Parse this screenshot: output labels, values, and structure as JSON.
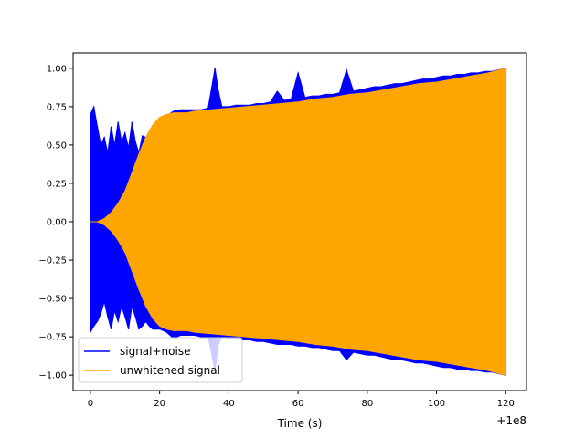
{
  "chart_data": {
    "type": "line",
    "title": "",
    "xlabel": "Time (s)",
    "ylabel": "",
    "x_offset_label": "+1e8",
    "xlim": [
      -5,
      126
    ],
    "ylim": [
      -1.1,
      1.1
    ],
    "x_ticks": [
      0,
      20,
      40,
      60,
      80,
      100,
      120
    ],
    "x_tick_labels": [
      "0",
      "20",
      "40",
      "60",
      "80",
      "100",
      "120"
    ],
    "y_ticks": [
      -1.0,
      -0.75,
      -0.5,
      -0.25,
      0.0,
      0.25,
      0.5,
      0.75,
      1.0
    ],
    "y_tick_labels": [
      "−1.00",
      "−0.75",
      "−0.50",
      "−0.25",
      "0.00",
      "0.25",
      "0.50",
      "0.75",
      "1.00"
    ],
    "grid": false,
    "legend_position": "lower-left",
    "series": [
      {
        "name": "signal+noise",
        "color": "#0000ff",
        "x": [
          0,
          1,
          2,
          3,
          4,
          5,
          6,
          7,
          8,
          9,
          10,
          11,
          12,
          13,
          14,
          15,
          16,
          17,
          18,
          20,
          22,
          24,
          26,
          28,
          30,
          32,
          34,
          36,
          37,
          38,
          40,
          42,
          44,
          46,
          48,
          50,
          52,
          54,
          56,
          58,
          60,
          62,
          64,
          66,
          68,
          70,
          72,
          74,
          76,
          78,
          80,
          82,
          84,
          86,
          88,
          90,
          92,
          94,
          96,
          98,
          100,
          102,
          104,
          106,
          108,
          110,
          112,
          114,
          116,
          118,
          120
        ],
        "y_upper": [
          0.7,
          0.75,
          0.62,
          0.5,
          0.55,
          0.45,
          0.62,
          0.5,
          0.65,
          0.52,
          0.58,
          0.48,
          0.65,
          0.52,
          0.45,
          0.56,
          0.55,
          0.53,
          0.6,
          0.66,
          0.69,
          0.72,
          0.73,
          0.73,
          0.73,
          0.73,
          0.74,
          1.0,
          0.85,
          0.75,
          0.75,
          0.76,
          0.76,
          0.76,
          0.77,
          0.77,
          0.78,
          0.85,
          0.79,
          0.8,
          0.97,
          0.81,
          0.82,
          0.82,
          0.83,
          0.83,
          0.84,
          0.99,
          0.85,
          0.86,
          0.87,
          0.88,
          0.88,
          0.89,
          0.9,
          0.9,
          0.91,
          0.92,
          0.93,
          0.93,
          0.94,
          0.95,
          0.95,
          0.96,
          0.96,
          0.97,
          0.97,
          0.98,
          0.98,
          0.99,
          1.0
        ],
        "y_lower": [
          -0.72,
          -0.68,
          -0.65,
          -0.6,
          -0.52,
          -0.62,
          -0.7,
          -0.58,
          -0.65,
          -0.55,
          -0.62,
          -0.7,
          -0.55,
          -0.62,
          -0.7,
          -0.68,
          -0.65,
          -0.68,
          -0.7,
          -0.7,
          -0.72,
          -0.76,
          -0.74,
          -0.74,
          -0.74,
          -0.75,
          -0.75,
          -0.97,
          -0.8,
          -0.75,
          -0.76,
          -0.76,
          -0.77,
          -0.77,
          -0.78,
          -0.78,
          -0.79,
          -0.8,
          -0.8,
          -0.8,
          -0.81,
          -0.81,
          -0.82,
          -0.82,
          -0.83,
          -0.84,
          -0.84,
          -0.9,
          -0.85,
          -0.86,
          -0.87,
          -0.87,
          -0.88,
          -0.89,
          -0.9,
          -0.9,
          -0.91,
          -0.92,
          -0.92,
          -0.93,
          -0.94,
          -0.95,
          -0.95,
          -0.96,
          -0.96,
          -0.97,
          -0.97,
          -0.98,
          -0.98,
          -0.99,
          -1.0
        ]
      },
      {
        "name": "unwhitened signal",
        "color": "#ffa500",
        "x": [
          0,
          2,
          4,
          6,
          8,
          10,
          12,
          14,
          16,
          18,
          20,
          22,
          24,
          26,
          28,
          30,
          35,
          40,
          45,
          50,
          55,
          60,
          65,
          70,
          75,
          80,
          85,
          90,
          95,
          100,
          105,
          110,
          115,
          120
        ],
        "y_upper": [
          0.0,
          0.0,
          0.02,
          0.06,
          0.12,
          0.2,
          0.32,
          0.44,
          0.55,
          0.63,
          0.68,
          0.7,
          0.71,
          0.71,
          0.71,
          0.72,
          0.73,
          0.74,
          0.75,
          0.76,
          0.77,
          0.78,
          0.8,
          0.81,
          0.83,
          0.84,
          0.86,
          0.88,
          0.9,
          0.91,
          0.93,
          0.95,
          0.97,
          1.0
        ],
        "y_lower": [
          0.0,
          0.0,
          -0.02,
          -0.06,
          -0.12,
          -0.2,
          -0.32,
          -0.44,
          -0.55,
          -0.63,
          -0.68,
          -0.7,
          -0.71,
          -0.71,
          -0.71,
          -0.72,
          -0.73,
          -0.74,
          -0.75,
          -0.76,
          -0.77,
          -0.78,
          -0.8,
          -0.81,
          -0.83,
          -0.84,
          -0.86,
          -0.88,
          -0.9,
          -0.91,
          -0.93,
          -0.95,
          -0.97,
          -1.0
        ]
      }
    ]
  }
}
